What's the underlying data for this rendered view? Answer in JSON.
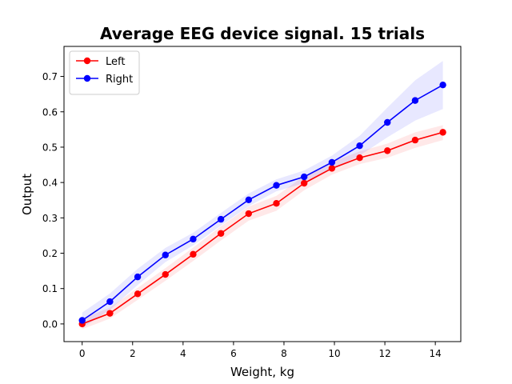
{
  "chart_data": {
    "type": "line",
    "title": "Average EEG device signal. 15 trials",
    "xlabel": "Weight, kg",
    "ylabel": "Output",
    "xlim": [
      -0.72,
      15.01
    ],
    "ylim": [
      -0.05,
      0.785
    ],
    "xticks": [
      0,
      2,
      4,
      6,
      8,
      10,
      12,
      14
    ],
    "yticks": [
      0.0,
      0.1,
      0.2,
      0.3,
      0.4,
      0.5,
      0.6,
      0.7
    ],
    "xtick_labels": [
      "0",
      "2",
      "4",
      "6",
      "8",
      "10",
      "12",
      "14"
    ],
    "ytick_labels": [
      "0.0",
      "0.1",
      "0.2",
      "0.3",
      "0.4",
      "0.5",
      "0.6",
      "0.7"
    ],
    "grid": false,
    "legend_position": "top-left",
    "x": [
      0,
      1.1,
      2.2,
      3.3,
      4.4,
      5.5,
      6.6,
      7.7,
      8.8,
      9.9,
      11.0,
      12.1,
      13.2,
      14.3
    ],
    "series": [
      {
        "name": "Left",
        "color": "#ff0000",
        "band_color": "#ffcccc",
        "values": [
          0.0,
          0.03,
          0.085,
          0.14,
          0.197,
          0.256,
          0.312,
          0.341,
          0.398,
          0.44,
          0.47,
          0.49,
          0.52,
          0.542
        ],
        "lower": [
          -0.015,
          0.015,
          0.068,
          0.122,
          0.178,
          0.236,
          0.292,
          0.32,
          0.378,
          0.422,
          0.452,
          0.47,
          0.498,
          0.52
        ],
        "upper": [
          0.015,
          0.046,
          0.102,
          0.158,
          0.216,
          0.276,
          0.332,
          0.362,
          0.418,
          0.458,
          0.488,
          0.51,
          0.542,
          0.562
        ]
      },
      {
        "name": "Right",
        "color": "#0000ff",
        "band_color": "#ccccff",
        "values": [
          0.01,
          0.063,
          0.133,
          0.195,
          0.24,
          0.296,
          0.351,
          0.392,
          0.416,
          0.457,
          0.504,
          0.57,
          0.632,
          0.676
        ],
        "lower": [
          -0.012,
          0.04,
          0.11,
          0.175,
          0.222,
          0.278,
          0.333,
          0.375,
          0.398,
          0.438,
          0.476,
          0.528,
          0.575,
          0.608
        ],
        "upper": [
          0.032,
          0.086,
          0.156,
          0.215,
          0.258,
          0.314,
          0.369,
          0.409,
          0.434,
          0.476,
          0.532,
          0.612,
          0.689,
          0.744
        ]
      }
    ]
  }
}
